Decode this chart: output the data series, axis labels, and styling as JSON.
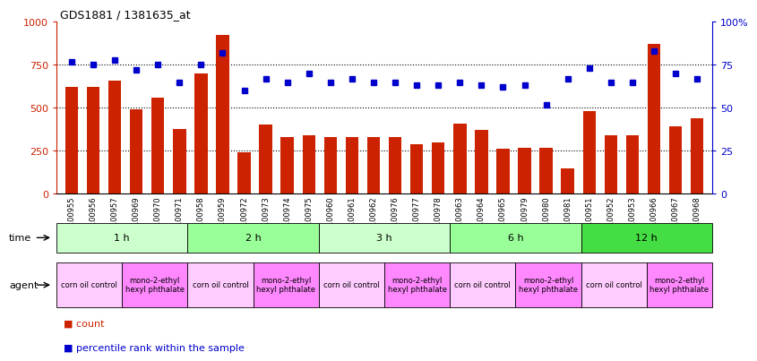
{
  "title": "GDS1881 / 1381635_at",
  "samples": [
    "GSM100955",
    "GSM100956",
    "GSM100957",
    "GSM100969",
    "GSM100970",
    "GSM100971",
    "GSM100958",
    "GSM100959",
    "GSM100972",
    "GSM100973",
    "GSM100974",
    "GSM100975",
    "GSM100960",
    "GSM100961",
    "GSM100962",
    "GSM100976",
    "GSM100977",
    "GSM100978",
    "GSM100963",
    "GSM100964",
    "GSM100965",
    "GSM100979",
    "GSM100980",
    "GSM100981",
    "GSM100951",
    "GSM100952",
    "GSM100953",
    "GSM100966",
    "GSM100967",
    "GSM100968"
  ],
  "counts": [
    620,
    620,
    660,
    490,
    560,
    375,
    700,
    925,
    240,
    405,
    330,
    340,
    330,
    330,
    330,
    330,
    290,
    300,
    410,
    370,
    260,
    265,
    265,
    150,
    480,
    340,
    340,
    870,
    390,
    440
  ],
  "percentile_ranks": [
    77,
    75,
    78,
    72,
    75,
    65,
    75,
    82,
    60,
    67,
    65,
    70,
    65,
    67,
    65,
    65,
    63,
    63,
    65,
    63,
    62,
    63,
    52,
    67,
    73,
    65,
    65,
    83,
    70,
    67
  ],
  "bar_color": "#cc2200",
  "dot_color": "#0000cc",
  "ylim_left": [
    0,
    1000
  ],
  "ylim_right": [
    0,
    100
  ],
  "yticks_left": [
    0,
    250,
    500,
    750,
    1000
  ],
  "yticks_right": [
    0,
    25,
    50,
    75,
    100
  ],
  "time_groups": [
    {
      "label": "1 h",
      "start": 0,
      "end": 6,
      "color": "#ccffcc"
    },
    {
      "label": "2 h",
      "start": 6,
      "end": 12,
      "color": "#99ff99"
    },
    {
      "label": "3 h",
      "start": 12,
      "end": 18,
      "color": "#ccffcc"
    },
    {
      "label": "6 h",
      "start": 18,
      "end": 24,
      "color": "#99ff99"
    },
    {
      "label": "12 h",
      "start": 24,
      "end": 30,
      "color": "#44dd44"
    }
  ],
  "agent_groups": [
    {
      "label": "corn oil control",
      "start": 0,
      "end": 3,
      "color": "#ffccff"
    },
    {
      "label": "mono-2-ethyl\nhexyl phthalate",
      "start": 3,
      "end": 6,
      "color": "#ff88ff"
    },
    {
      "label": "corn oil control",
      "start": 6,
      "end": 9,
      "color": "#ffccff"
    },
    {
      "label": "mono-2-ethyl\nhexyl phthalate",
      "start": 9,
      "end": 12,
      "color": "#ff88ff"
    },
    {
      "label": "corn oil control",
      "start": 12,
      "end": 15,
      "color": "#ffccff"
    },
    {
      "label": "mono-2-ethyl\nhexyl phthalate",
      "start": 15,
      "end": 18,
      "color": "#ff88ff"
    },
    {
      "label": "corn oil control",
      "start": 18,
      "end": 21,
      "color": "#ffccff"
    },
    {
      "label": "mono-2-ethyl\nhexyl phthalate",
      "start": 21,
      "end": 24,
      "color": "#ff88ff"
    },
    {
      "label": "corn oil control",
      "start": 24,
      "end": 27,
      "color": "#ffccff"
    },
    {
      "label": "mono-2-ethyl\nhexyl phthalate",
      "start": 27,
      "end": 30,
      "color": "#ff88ff"
    }
  ],
  "legend_count_label": "count",
  "legend_pct_label": "percentile rank within the sample",
  "time_label": "time",
  "agent_label": "agent",
  "bg_color": "#ffffff",
  "left_axis_color": "#cc2200",
  "right_axis_color": "#0000cc"
}
